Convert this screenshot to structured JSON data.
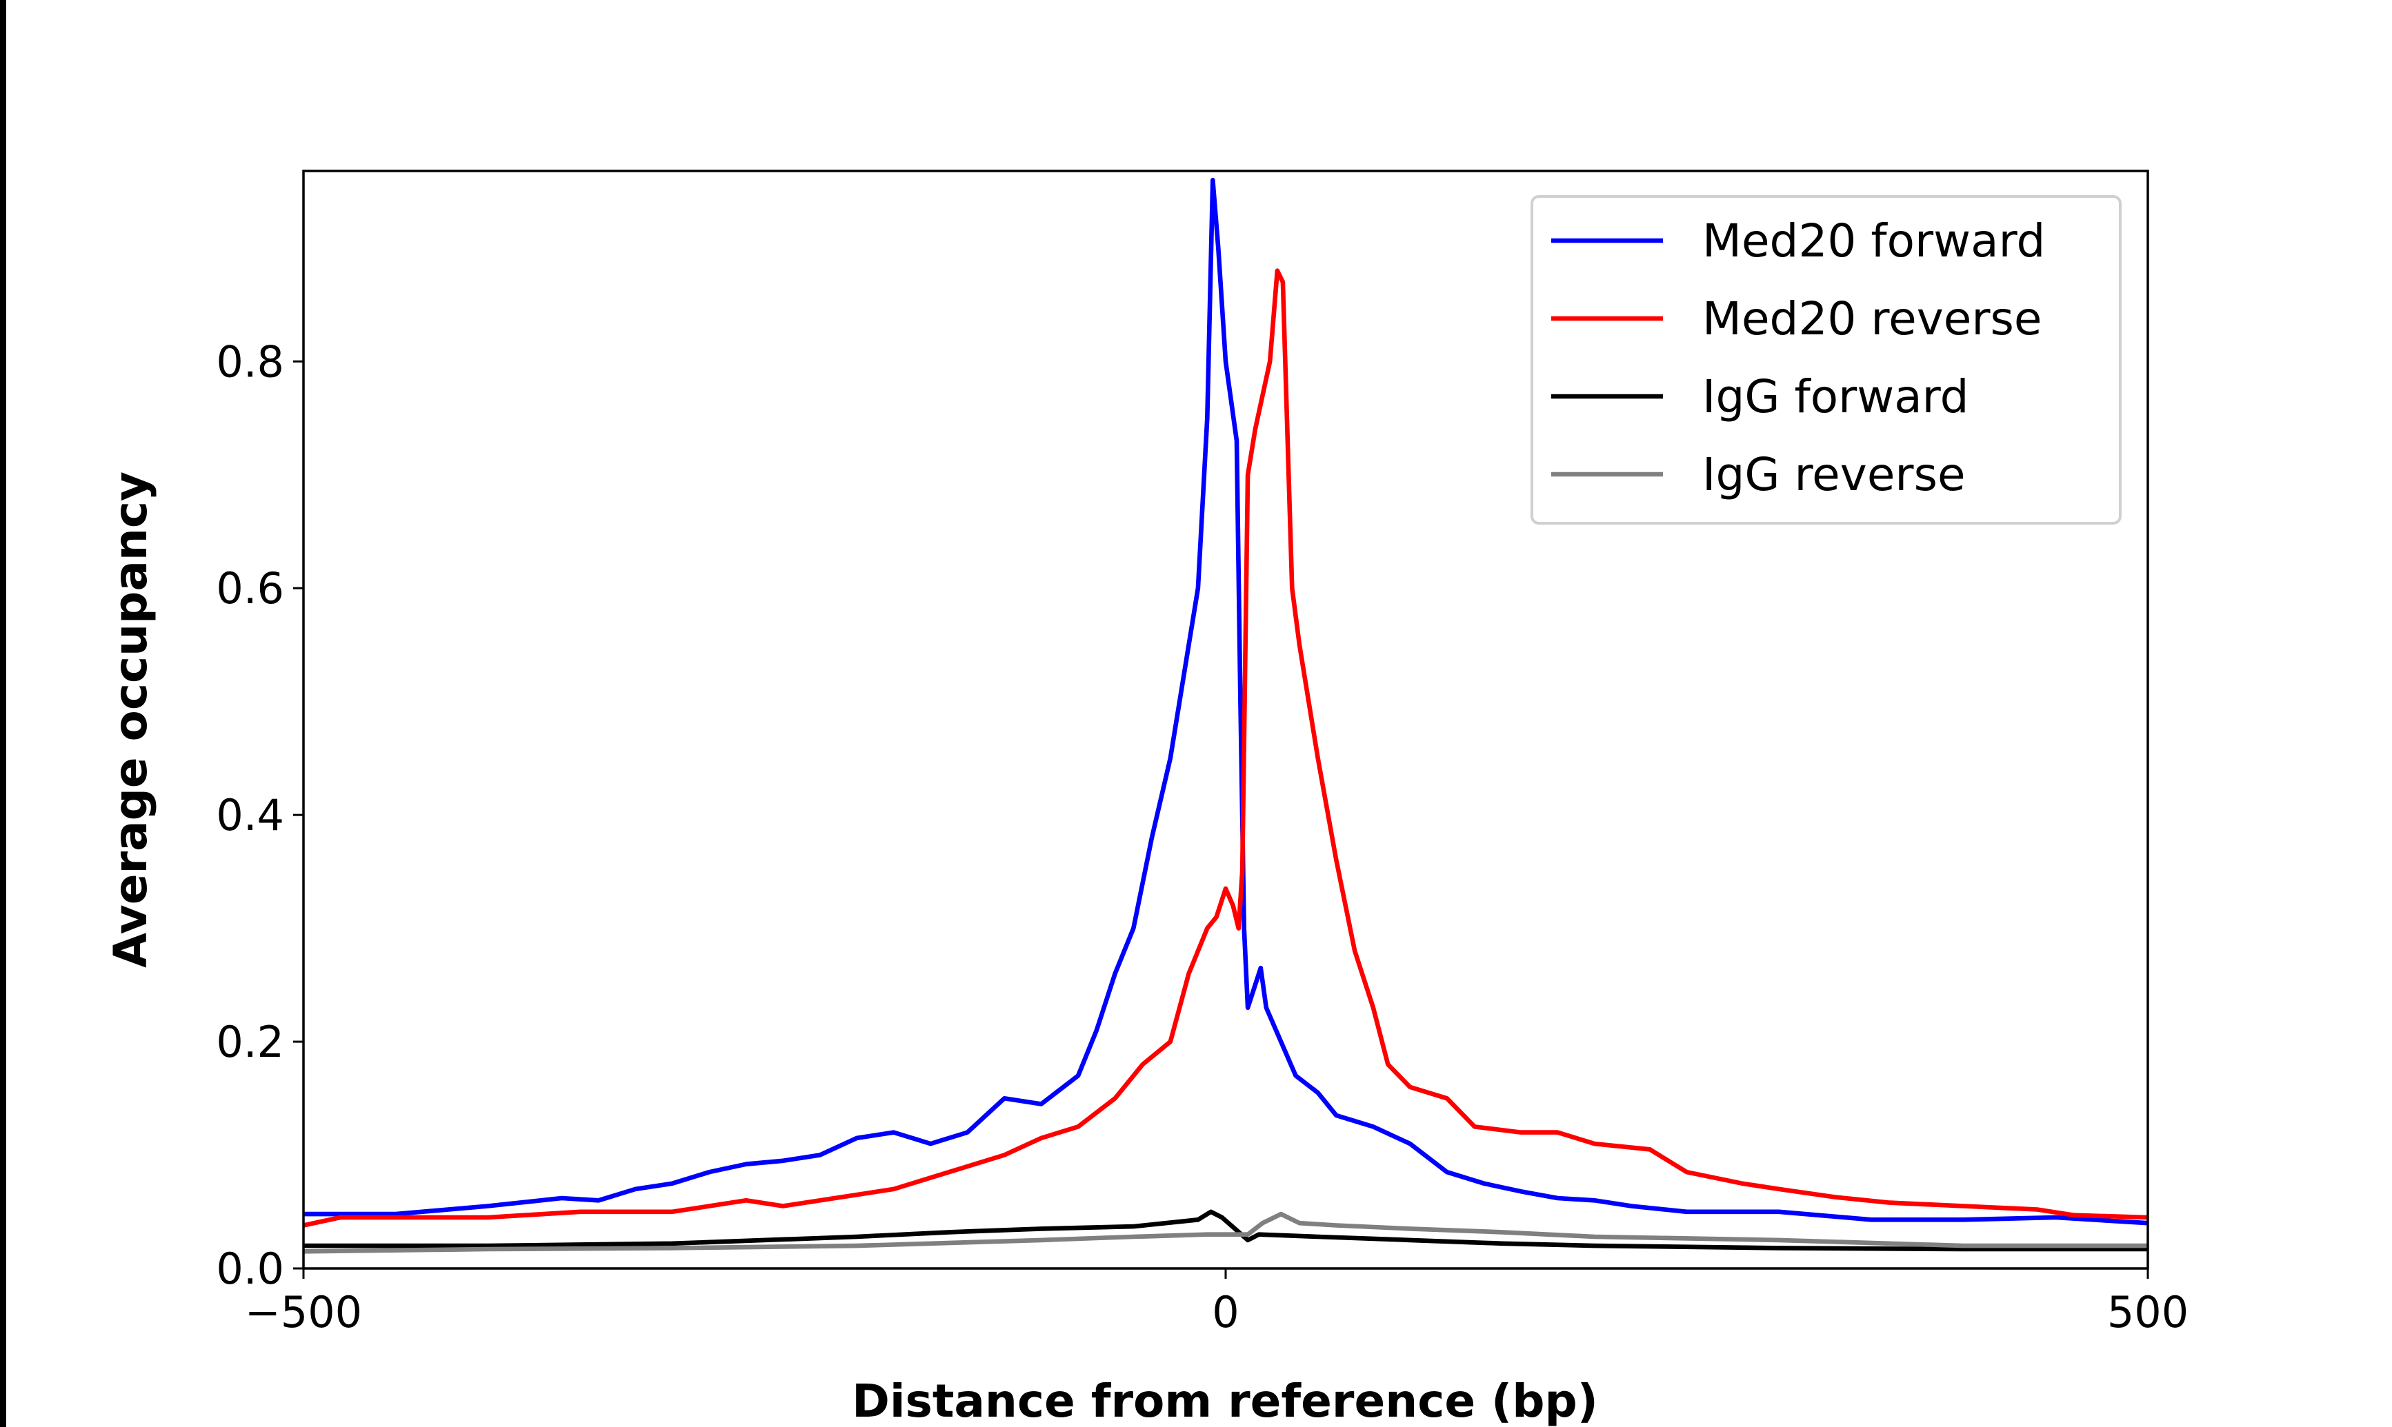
{
  "chart_data": {
    "type": "line",
    "title": "",
    "xlabel": "Distance from reference (bp)",
    "ylabel": "Average occupancy",
    "xlim": [
      -500,
      500
    ],
    "ylim": [
      0,
      0.968
    ],
    "xticks": [
      -500,
      0,
      500
    ],
    "xtick_labels": [
      "−500",
      "0",
      "500"
    ],
    "yticks": [
      0.0,
      0.2,
      0.4,
      0.6,
      0.8
    ],
    "ytick_labels": [
      "0.0",
      "0.2",
      "0.4",
      "0.6",
      "0.8"
    ],
    "grid": false,
    "legend_position": "top-right",
    "series": [
      {
        "name": "Med20 forward",
        "color": "#0000ff",
        "x": [
          -500,
          -450,
          -400,
          -360,
          -340,
          -320,
          -300,
          -280,
          -260,
          -240,
          -220,
          -200,
          -180,
          -160,
          -140,
          -120,
          -100,
          -80,
          -70,
          -60,
          -50,
          -40,
          -30,
          -20,
          -15,
          -10,
          -7,
          -4,
          0,
          6,
          8,
          10,
          12,
          16,
          19,
          22,
          30,
          38,
          50,
          60,
          70,
          80,
          100,
          120,
          140,
          160,
          180,
          200,
          220,
          250,
          300,
          350,
          400,
          450,
          500
        ],
        "y": [
          0.048,
          0.048,
          0.055,
          0.062,
          0.06,
          0.07,
          0.075,
          0.085,
          0.092,
          0.095,
          0.1,
          0.115,
          0.12,
          0.11,
          0.12,
          0.15,
          0.145,
          0.17,
          0.21,
          0.26,
          0.3,
          0.38,
          0.45,
          0.55,
          0.6,
          0.75,
          0.96,
          0.9,
          0.8,
          0.73,
          0.5,
          0.3,
          0.23,
          0.25,
          0.265,
          0.23,
          0.2,
          0.17,
          0.155,
          0.135,
          0.13,
          0.125,
          0.11,
          0.085,
          0.075,
          0.068,
          0.062,
          0.06,
          0.055,
          0.05,
          0.05,
          0.043,
          0.043,
          0.045,
          0.04
        ]
      },
      {
        "name": "Med20 reverse",
        "color": "#ff0000",
        "x": [
          -500,
          -480,
          -450,
          -400,
          -350,
          -300,
          -260,
          -240,
          -200,
          -180,
          -150,
          -120,
          -100,
          -80,
          -60,
          -45,
          -30,
          -20,
          -15,
          -10,
          -5,
          0,
          4,
          7,
          9,
          12,
          16,
          20,
          24,
          28,
          31,
          36,
          40,
          50,
          60,
          70,
          80,
          88,
          100,
          120,
          135,
          160,
          180,
          200,
          230,
          250,
          280,
          300,
          330,
          360,
          400,
          440,
          460,
          500
        ],
        "y": [
          0.038,
          0.045,
          0.045,
          0.045,
          0.05,
          0.05,
          0.06,
          0.055,
          0.065,
          0.07,
          0.085,
          0.1,
          0.115,
          0.125,
          0.15,
          0.18,
          0.2,
          0.26,
          0.28,
          0.3,
          0.31,
          0.335,
          0.32,
          0.3,
          0.35,
          0.7,
          0.74,
          0.77,
          0.8,
          0.88,
          0.87,
          0.6,
          0.55,
          0.45,
          0.36,
          0.28,
          0.23,
          0.18,
          0.16,
          0.15,
          0.125,
          0.12,
          0.12,
          0.11,
          0.105,
          0.085,
          0.075,
          0.07,
          0.063,
          0.058,
          0.055,
          0.052,
          0.047,
          0.045
        ]
      },
      {
        "name": "IgG forward",
        "color": "#000000",
        "x": [
          -500,
          -400,
          -300,
          -200,
          -150,
          -100,
          -50,
          -15,
          -8,
          -2,
          5,
          12,
          18,
          50,
          100,
          150,
          200,
          300,
          400,
          500
        ],
        "y": [
          0.02,
          0.02,
          0.022,
          0.028,
          0.032,
          0.035,
          0.037,
          0.043,
          0.05,
          0.045,
          0.035,
          0.025,
          0.03,
          0.028,
          0.025,
          0.022,
          0.02,
          0.018,
          0.017,
          0.017
        ]
      },
      {
        "name": "IgG reverse",
        "color": "#808080",
        "x": [
          -500,
          -400,
          -300,
          -200,
          -100,
          -50,
          -10,
          5,
          12,
          20,
          30,
          40,
          60,
          100,
          150,
          200,
          300,
          400,
          500
        ],
        "y": [
          0.015,
          0.017,
          0.018,
          0.02,
          0.025,
          0.028,
          0.03,
          0.03,
          0.03,
          0.04,
          0.048,
          0.04,
          0.038,
          0.035,
          0.032,
          0.028,
          0.025,
          0.02,
          0.02
        ]
      }
    ]
  }
}
